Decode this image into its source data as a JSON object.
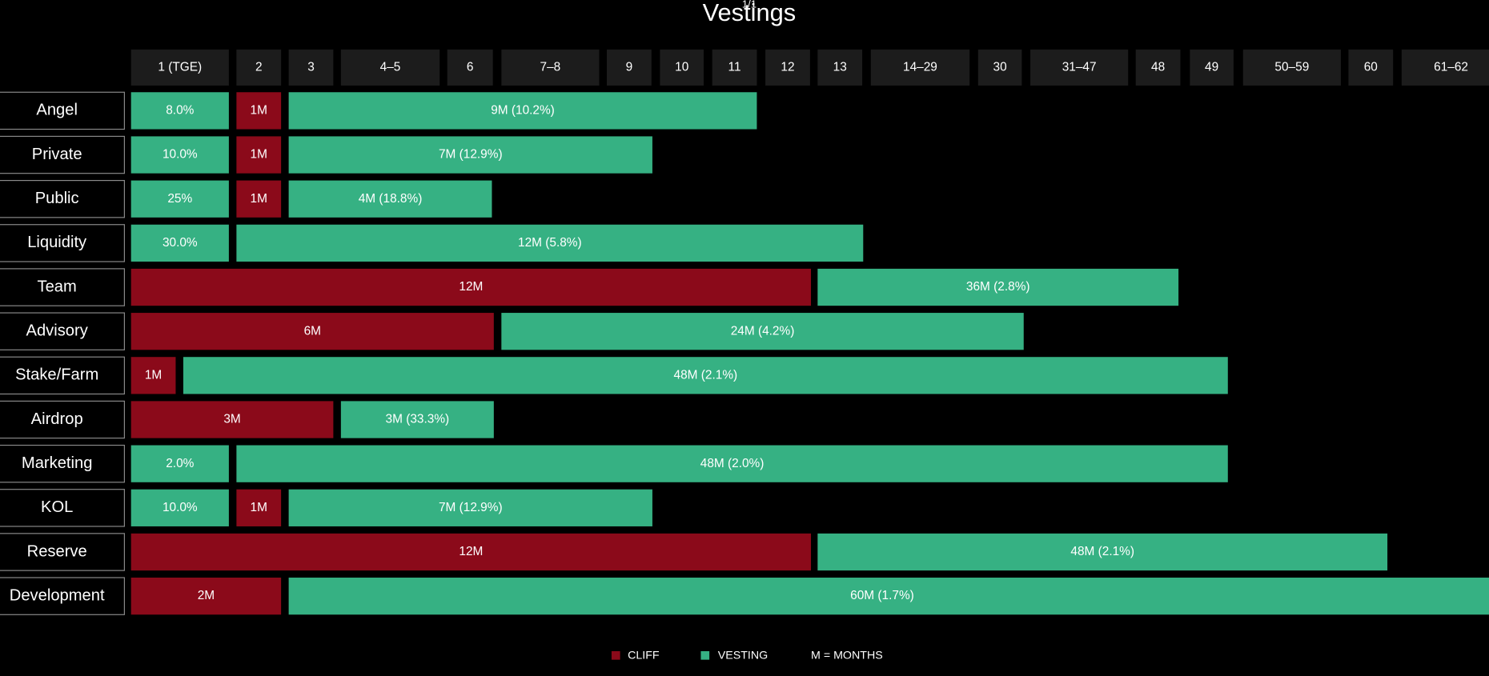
{
  "title": "Vestings",
  "page_indicator": "1/1",
  "columns": [
    "1 (TGE)",
    "2",
    "3",
    "4–5",
    "6",
    "7–8",
    "9",
    "10",
    "11",
    "12",
    "13",
    "14–29",
    "30",
    "31–47",
    "48",
    "49",
    "50–59",
    "60",
    "61–62"
  ],
  "rows": [
    {
      "label": "Angel",
      "segments": [
        {
          "text": "8.0%",
          "kind": "vesting"
        },
        {
          "text": "1M",
          "kind": "cliff"
        },
        {
          "text": "9M (10.2%)",
          "kind": "vesting"
        }
      ]
    },
    {
      "label": "Private",
      "segments": [
        {
          "text": "10.0%",
          "kind": "vesting"
        },
        {
          "text": "1M",
          "kind": "cliff"
        },
        {
          "text": "7M (12.9%)",
          "kind": "vesting"
        }
      ]
    },
    {
      "label": "Public",
      "segments": [
        {
          "text": "25%",
          "kind": "vesting"
        },
        {
          "text": "1M",
          "kind": "cliff"
        },
        {
          "text": "4M (18.8%)",
          "kind": "vesting"
        }
      ]
    },
    {
      "label": "Liquidity",
      "segments": [
        {
          "text": "30.0%",
          "kind": "vesting"
        },
        {
          "text": "12M (5.8%)",
          "kind": "vesting"
        }
      ]
    },
    {
      "label": "Team",
      "segments": [
        {
          "text": "12M",
          "kind": "cliff"
        },
        {
          "text": "36M (2.8%)",
          "kind": "vesting"
        }
      ]
    },
    {
      "label": "Advisory",
      "segments": [
        {
          "text": "6M",
          "kind": "cliff"
        },
        {
          "text": "24M (4.2%)",
          "kind": "vesting"
        }
      ]
    },
    {
      "label": "Stake/Farm",
      "segments": [
        {
          "text": "1M",
          "kind": "cliff"
        },
        {
          "text": "48M (2.1%)",
          "kind": "vesting"
        }
      ]
    },
    {
      "label": "Airdrop",
      "segments": [
        {
          "text": "3M",
          "kind": "cliff"
        },
        {
          "text": "3M (33.3%)",
          "kind": "vesting"
        }
      ]
    },
    {
      "label": "Marketing",
      "segments": [
        {
          "text": "2.0%",
          "kind": "vesting"
        },
        {
          "text": "48M (2.0%)",
          "kind": "vesting"
        }
      ]
    },
    {
      "label": "KOL",
      "segments": [
        {
          "text": "10.0%",
          "kind": "vesting"
        },
        {
          "text": "1M",
          "kind": "cliff"
        },
        {
          "text": "7M (12.9%)",
          "kind": "vesting"
        }
      ]
    },
    {
      "label": "Reserve",
      "segments": [
        {
          "text": "12M",
          "kind": "cliff"
        },
        {
          "text": "48M (2.1%)",
          "kind": "vesting"
        }
      ]
    },
    {
      "label": "Development",
      "segments": [
        {
          "text": "2M",
          "kind": "cliff"
        },
        {
          "text": "60M (1.7%)",
          "kind": "vesting"
        }
      ]
    }
  ],
  "legend": {
    "cliff": "CLIFF",
    "vesting": "VESTING",
    "note": "M = MONTHS"
  }
}
